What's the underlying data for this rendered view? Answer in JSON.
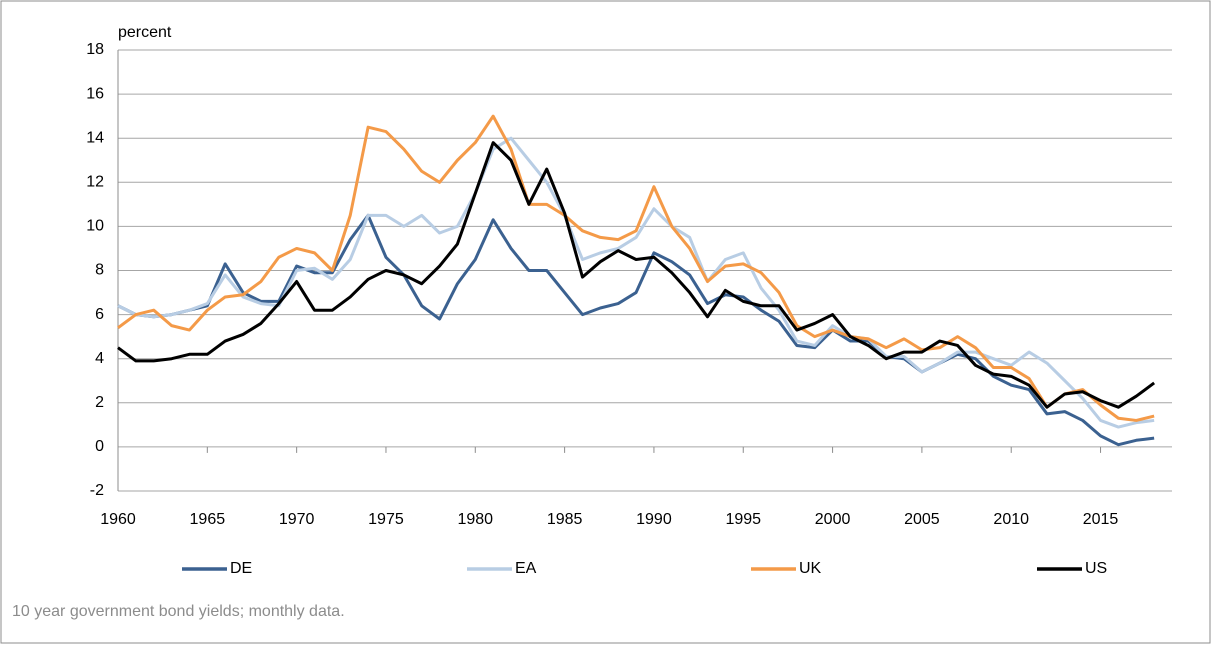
{
  "chart_data": {
    "type": "line",
    "y_label": "percent",
    "note": "10 year government bond yields; monthly data.",
    "x": [
      1960,
      1961,
      1962,
      1963,
      1964,
      1965,
      1966,
      1967,
      1968,
      1969,
      1970,
      1971,
      1972,
      1973,
      1974,
      1975,
      1976,
      1977,
      1978,
      1979,
      1980,
      1981,
      1982,
      1983,
      1984,
      1985,
      1986,
      1987,
      1988,
      1989,
      1990,
      1991,
      1992,
      1993,
      1994,
      1995,
      1996,
      1997,
      1998,
      1999,
      2000,
      2001,
      2002,
      2003,
      2004,
      2005,
      2006,
      2007,
      2008,
      2009,
      2010,
      2011,
      2012,
      2013,
      2014,
      2015,
      2016,
      2017,
      2018
    ],
    "series": [
      {
        "name": "DE",
        "color": "#3b6190",
        "values": [
          6.4,
          6.0,
          5.9,
          6.0,
          6.2,
          6.4,
          8.3,
          7.0,
          6.6,
          6.6,
          8.2,
          7.9,
          7.9,
          9.4,
          10.5,
          8.6,
          7.8,
          6.4,
          5.8,
          7.4,
          8.5,
          10.3,
          9.0,
          8.0,
          8.0,
          7.0,
          6.0,
          6.3,
          6.5,
          7.0,
          8.8,
          8.4,
          7.8,
          6.5,
          6.9,
          6.8,
          6.2,
          5.7,
          4.6,
          4.5,
          5.3,
          4.8,
          4.8,
          4.1,
          4.0,
          3.4,
          3.8,
          4.2,
          4.0,
          3.2,
          2.8,
          2.6,
          1.5,
          1.6,
          1.2,
          0.5,
          0.1,
          0.3,
          0.4
        ]
      },
      {
        "name": "EA",
        "color": "#b8cde4",
        "values": [
          6.4,
          6.0,
          5.9,
          6.0,
          6.2,
          6.5,
          7.8,
          6.8,
          6.5,
          6.4,
          8.0,
          8.1,
          7.6,
          8.5,
          10.5,
          10.5,
          10.0,
          10.5,
          9.7,
          10.0,
          11.5,
          13.5,
          14.0,
          13.0,
          12.0,
          10.5,
          8.5,
          8.8,
          9.0,
          9.5,
          10.8,
          10.0,
          9.5,
          7.5,
          8.5,
          8.8,
          7.2,
          6.2,
          4.8,
          4.6,
          5.5,
          5.0,
          4.9,
          4.1,
          4.1,
          3.4,
          3.8,
          4.3,
          4.3,
          4.0,
          3.7,
          4.3,
          3.8,
          3.0,
          2.2,
          1.2,
          0.9,
          1.1,
          1.2
        ]
      },
      {
        "name": "UK",
        "color": "#f49a48",
        "values": [
          5.4,
          6.0,
          6.2,
          5.5,
          5.3,
          6.2,
          6.8,
          6.9,
          7.5,
          8.6,
          9.0,
          8.8,
          8.0,
          10.5,
          14.5,
          14.3,
          13.5,
          12.5,
          12.0,
          13.0,
          13.8,
          15.0,
          13.5,
          11.0,
          11.0,
          10.5,
          9.8,
          9.5,
          9.4,
          9.8,
          11.8,
          10.0,
          9.0,
          7.5,
          8.2,
          8.3,
          7.9,
          7.0,
          5.5,
          5.0,
          5.3,
          5.0,
          4.9,
          4.5,
          4.9,
          4.4,
          4.5,
          5.0,
          4.5,
          3.6,
          3.6,
          3.1,
          1.8,
          2.4,
          2.6,
          1.9,
          1.3,
          1.2,
          1.4
        ]
      },
      {
        "name": "US",
        "color": "#000000",
        "values": [
          4.5,
          3.9,
          3.9,
          4.0,
          4.2,
          4.2,
          4.8,
          5.1,
          5.6,
          6.5,
          7.5,
          6.2,
          6.2,
          6.8,
          7.6,
          8.0,
          7.8,
          7.4,
          8.2,
          9.2,
          11.5,
          13.8,
          13.0,
          11.0,
          12.6,
          10.6,
          7.7,
          8.4,
          8.9,
          8.5,
          8.6,
          7.9,
          7.0,
          5.9,
          7.1,
          6.6,
          6.4,
          6.4,
          5.3,
          5.6,
          6.0,
          5.0,
          4.6,
          4.0,
          4.3,
          4.3,
          4.8,
          4.6,
          3.7,
          3.3,
          3.2,
          2.8,
          1.8,
          2.4,
          2.5,
          2.1,
          1.8,
          2.3,
          2.9
        ]
      }
    ],
    "xlim": [
      1960,
      2019
    ],
    "xticks": [
      1960,
      1965,
      1970,
      1975,
      1980,
      1985,
      1990,
      1995,
      2000,
      2005,
      2010,
      2015
    ],
    "ylim": [
      -2,
      18
    ],
    "yticks": [
      -2,
      0,
      2,
      4,
      6,
      8,
      10,
      12,
      14,
      16,
      18
    ],
    "grid": true,
    "legend": "bottom"
  }
}
